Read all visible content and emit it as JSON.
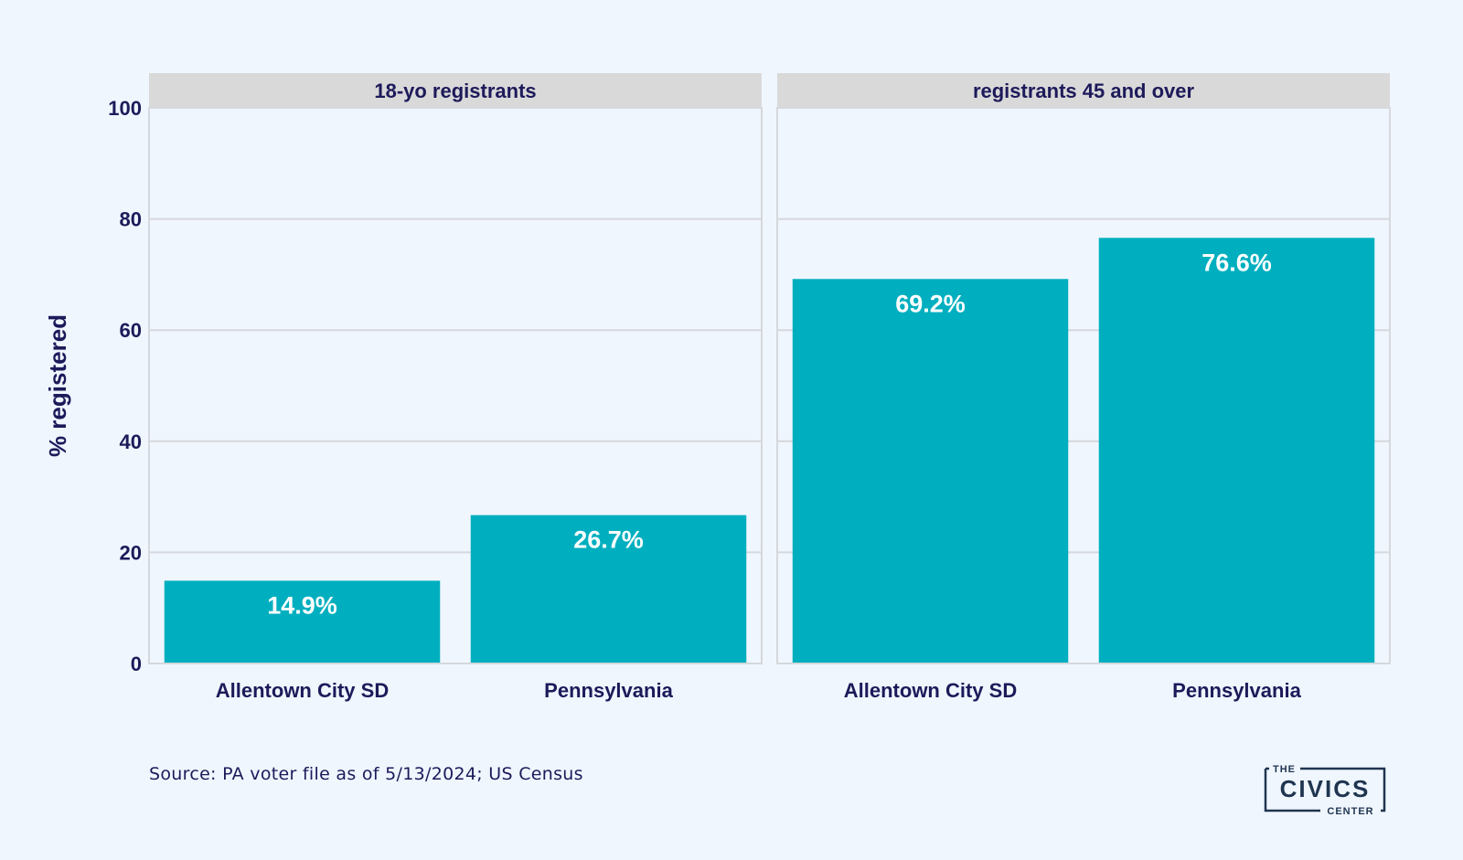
{
  "colors": {
    "background": "#f0f6fe",
    "bar": "#00afbf",
    "strip": "#d9d9d9",
    "grid": "#d5d8dc",
    "text": "#1d1a5a",
    "bar_label": "#ffffff",
    "logo": "#1f3550"
  },
  "chart_data": {
    "type": "bar",
    "ylabel": "% registered",
    "ylim": [
      0,
      100
    ],
    "yticks": [
      0,
      20,
      40,
      60,
      80,
      100
    ],
    "grid": true,
    "panels": [
      {
        "title": "18-yo registrants",
        "categories": [
          "Allentown City SD",
          "Pennsylvania"
        ],
        "values": [
          14.9,
          26.7
        ],
        "labels": [
          "14.9%",
          "26.7%"
        ]
      },
      {
        "title": "registrants 45 and over",
        "categories": [
          "Allentown City SD",
          "Pennsylvania"
        ],
        "values": [
          69.2,
          76.6
        ],
        "labels": [
          "69.2%",
          "76.6%"
        ]
      }
    ]
  },
  "footer": {
    "source": "Source: PA voter file as of 5/13/2024; US Census"
  },
  "logo": {
    "top": "THE",
    "main": "CIVICS",
    "bottom": "CENTER"
  }
}
